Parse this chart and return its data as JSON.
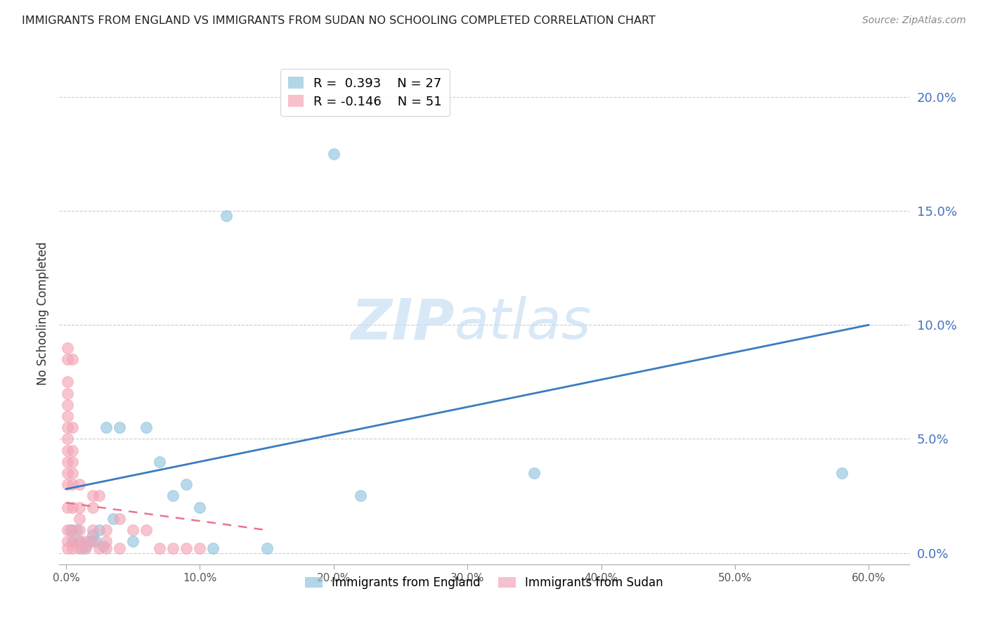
{
  "title": "IMMIGRANTS FROM ENGLAND VS IMMIGRANTS FROM SUDAN NO SCHOOLING COMPLETED CORRELATION CHART",
  "source": "Source: ZipAtlas.com",
  "ylabel": "No Schooling Completed",
  "x_tick_values": [
    0.0,
    10.0,
    20.0,
    30.0,
    40.0,
    50.0,
    60.0
  ],
  "y_tick_values": [
    0.0,
    5.0,
    10.0,
    15.0,
    20.0
  ],
  "xlim": [
    -0.5,
    63.0
  ],
  "ylim": [
    -0.5,
    21.5
  ],
  "england_R": 0.393,
  "england_N": 27,
  "sudan_R": -0.146,
  "sudan_N": 51,
  "england_color": "#92c5de",
  "sudan_color": "#f4a6b8",
  "england_line_color": "#3a7bbf",
  "sudan_line_color": "#e8768a",
  "legend_england_label": "Immigrants from England",
  "legend_sudan_label": "Immigrants from Sudan",
  "england_line_x0": 0.0,
  "england_line_y0": 2.8,
  "england_line_x1": 60.0,
  "england_line_y1": 10.0,
  "sudan_line_x0": 0.0,
  "sudan_line_y0": 2.2,
  "sudan_line_x1": 10.0,
  "sudan_line_y1": 1.4,
  "england_points": [
    [
      0.5,
      0.5
    ],
    [
      0.8,
      1.0
    ],
    [
      1.0,
      0.5
    ],
    [
      1.2,
      0.2
    ],
    [
      1.5,
      0.3
    ],
    [
      1.8,
      0.5
    ],
    [
      2.0,
      0.8
    ],
    [
      2.2,
      0.5
    ],
    [
      2.5,
      1.0
    ],
    [
      2.8,
      0.3
    ],
    [
      3.0,
      5.5
    ],
    [
      3.5,
      1.5
    ],
    [
      4.0,
      5.5
    ],
    [
      5.0,
      0.5
    ],
    [
      6.0,
      5.5
    ],
    [
      7.0,
      4.0
    ],
    [
      8.0,
      2.5
    ],
    [
      9.0,
      3.0
    ],
    [
      10.0,
      2.0
    ],
    [
      11.0,
      0.2
    ],
    [
      12.0,
      14.8
    ],
    [
      15.0,
      0.2
    ],
    [
      20.0,
      17.5
    ],
    [
      22.0,
      2.5
    ],
    [
      35.0,
      3.5
    ],
    [
      58.0,
      3.5
    ],
    [
      0.3,
      1.0
    ]
  ],
  "sudan_points": [
    [
      0.1,
      0.2
    ],
    [
      0.1,
      0.5
    ],
    [
      0.1,
      1.0
    ],
    [
      0.1,
      2.0
    ],
    [
      0.1,
      3.0
    ],
    [
      0.1,
      3.5
    ],
    [
      0.1,
      4.0
    ],
    [
      0.1,
      4.5
    ],
    [
      0.1,
      5.0
    ],
    [
      0.1,
      5.5
    ],
    [
      0.1,
      6.5
    ],
    [
      0.1,
      7.5
    ],
    [
      0.1,
      9.0
    ],
    [
      0.1,
      7.0
    ],
    [
      0.1,
      6.0
    ],
    [
      0.5,
      0.2
    ],
    [
      0.5,
      0.5
    ],
    [
      0.5,
      1.0
    ],
    [
      0.5,
      2.0
    ],
    [
      0.5,
      3.0
    ],
    [
      0.5,
      3.5
    ],
    [
      0.5,
      4.0
    ],
    [
      0.5,
      4.5
    ],
    [
      0.5,
      5.5
    ],
    [
      1.0,
      0.2
    ],
    [
      1.0,
      0.5
    ],
    [
      1.0,
      1.0
    ],
    [
      1.0,
      2.0
    ],
    [
      1.0,
      3.0
    ],
    [
      1.5,
      0.2
    ],
    [
      1.5,
      0.5
    ],
    [
      2.0,
      0.5
    ],
    [
      2.0,
      1.0
    ],
    [
      2.0,
      2.0
    ],
    [
      2.0,
      2.5
    ],
    [
      2.5,
      0.2
    ],
    [
      2.5,
      2.5
    ],
    [
      3.0,
      0.2
    ],
    [
      3.0,
      0.5
    ],
    [
      3.0,
      1.0
    ],
    [
      4.0,
      0.2
    ],
    [
      4.0,
      1.5
    ],
    [
      5.0,
      1.0
    ],
    [
      6.0,
      1.0
    ],
    [
      7.0,
      0.2
    ],
    [
      8.0,
      0.2
    ],
    [
      9.0,
      0.2
    ],
    [
      10.0,
      0.2
    ],
    [
      0.1,
      8.5
    ],
    [
      0.5,
      8.5
    ],
    [
      1.0,
      1.5
    ]
  ]
}
